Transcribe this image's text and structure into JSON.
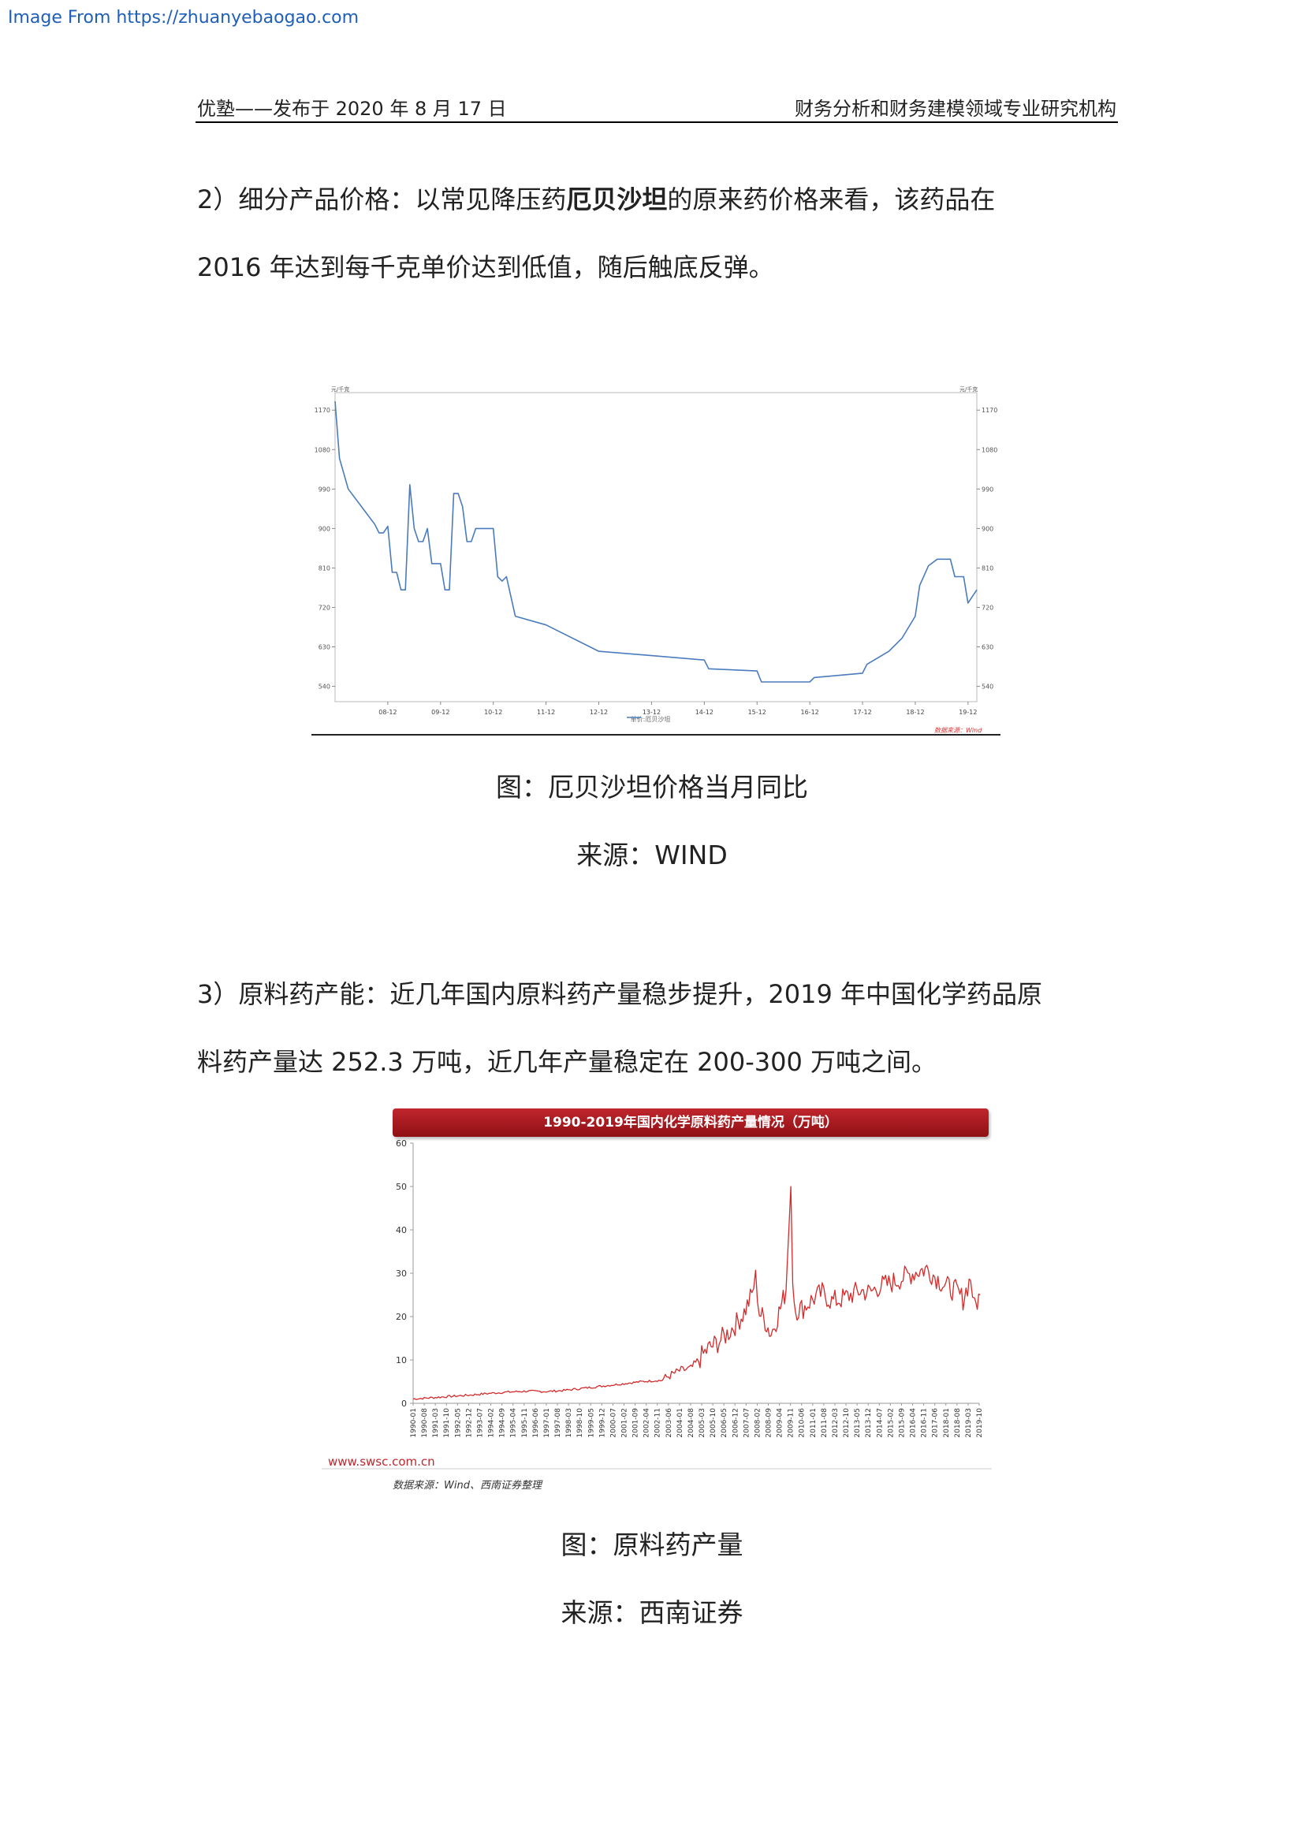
{
  "watermark": "Image From https://zhuanyebaogao.com",
  "header": {
    "left": "优塾——发布于 2020 年 8 月 17 日",
    "right": "财务分析和财务建模领域专业研究机构"
  },
  "section2": {
    "line1_before": "2）细分产品价格：以常见降压药",
    "line1_bold": "厄贝沙坦",
    "line1_after": "的原来药价格来看，该药品在",
    "line2": "2016 年达到每千克单价达到低值，随后触底反弹。"
  },
  "figure1": {
    "caption": "图：厄贝沙坦价格当月同比",
    "source": "来源：WIND"
  },
  "section3": {
    "line1": "3）原料药产能：近几年国内原料药产量稳步提升，2019 年中国化学药品原",
    "line2": "料药产量达 252.3 万吨，近几年产量稳定在 200-300 万吨之间。"
  },
  "figure2": {
    "caption": "图：原料药产量",
    "source": "来源：西南证券"
  },
  "chart_data": [
    {
      "type": "line",
      "unit_left": "元/千克",
      "unit_right": "元/千克",
      "x_ticks": [
        "08-12",
        "09-12",
        "10-12",
        "11-12",
        "12-12",
        "13-12",
        "14-12",
        "15-12",
        "16-12",
        "17-12",
        "18-12",
        "19-12"
      ],
      "y_ticks": [
        540,
        630,
        720,
        810,
        900,
        990,
        1080,
        1170
      ],
      "ylim": [
        505,
        1210
      ],
      "legend": "单价:厄贝沙坦",
      "source_note": "数据来源：Wind",
      "series": [
        {
          "name": "单价:厄贝沙坦",
          "color": "#4a7bbd",
          "points": [
            [
              "2007-12",
              1190
            ],
            [
              "2008-01",
              1060
            ],
            [
              "2008-03",
              990
            ],
            [
              "2008-06",
              950
            ],
            [
              "2008-09",
              910
            ],
            [
              "2008-10",
              890
            ],
            [
              "2008-11",
              890
            ],
            [
              "2008-12",
              905
            ],
            [
              "2009-01",
              800
            ],
            [
              "2009-02",
              800
            ],
            [
              "2009-03",
              760
            ],
            [
              "2009-04",
              760
            ],
            [
              "2009-05",
              1000
            ],
            [
              "2009-06",
              900
            ],
            [
              "2009-07",
              870
            ],
            [
              "2009-08",
              870
            ],
            [
              "2009-09",
              900
            ],
            [
              "2009-10",
              820
            ],
            [
              "2009-11",
              820
            ],
            [
              "2009-12",
              820
            ],
            [
              "2010-01",
              760
            ],
            [
              "2010-02",
              760
            ],
            [
              "2010-03",
              980
            ],
            [
              "2010-04",
              980
            ],
            [
              "2010-05",
              950
            ],
            [
              "2010-06",
              870
            ],
            [
              "2010-07",
              870
            ],
            [
              "2010-08",
              900
            ],
            [
              "2010-09",
              900
            ],
            [
              "2010-10",
              900
            ],
            [
              "2010-11",
              900
            ],
            [
              "2010-12",
              900
            ],
            [
              "2011-01",
              790
            ],
            [
              "2011-02",
              780
            ],
            [
              "2011-03",
              790
            ],
            [
              "2011-05",
              700
            ],
            [
              "2011-12",
              680
            ],
            [
              "2012-12",
              620
            ],
            [
              "2013-12",
              610
            ],
            [
              "2014-12",
              600
            ],
            [
              "2015-01",
              580
            ],
            [
              "2015-12",
              575
            ],
            [
              "2016-01",
              550
            ],
            [
              "2016-12",
              550
            ],
            [
              "2017-01",
              560
            ],
            [
              "2017-12",
              570
            ],
            [
              "2018-01",
              590
            ],
            [
              "2018-06",
              620
            ],
            [
              "2018-09",
              650
            ],
            [
              "2018-12",
              700
            ],
            [
              "2019-01",
              770
            ],
            [
              "2019-03",
              815
            ],
            [
              "2019-05",
              830
            ],
            [
              "2019-08",
              830
            ],
            [
              "2019-09",
              790
            ],
            [
              "2019-11",
              790
            ],
            [
              "2019-12",
              730
            ],
            [
              "2020-02",
              760
            ]
          ]
        }
      ]
    },
    {
      "type": "line",
      "title": "1990-2019年国内化学原料药产量情况（万吨）",
      "y_ticks": [
        0,
        10,
        20,
        30,
        40,
        50,
        60
      ],
      "ylim": [
        0,
        60
      ],
      "x_range": [
        "1990-01",
        "2019-10"
      ],
      "x_ticks": [
        "1990-01",
        "1990-08",
        "1991-03",
        "1991-10",
        "1992-05",
        "1992-12",
        "1993-07",
        "1994-02",
        "1994-09",
        "1995-04",
        "1995-11",
        "1996-06",
        "1997-01",
        "1997-08",
        "1998-03",
        "1998-10",
        "1999-05",
        "1999-12",
        "2000-07",
        "2001-02",
        "2001-09",
        "2002-04",
        "2002-11",
        "2003-06",
        "2004-01",
        "2004-08",
        "2005-03",
        "2005-10",
        "2006-05",
        "2006-12",
        "2007-07",
        "2008-02",
        "2008-09",
        "2009-04",
        "2009-11",
        "2010-06",
        "2011-01",
        "2011-08",
        "2012-03",
        "2012-10",
        "2013-05",
        "2013-12",
        "2014-07",
        "2015-02",
        "2015-09",
        "2016-04",
        "2016-11",
        "2017-06",
        "2018-01",
        "2018-08",
        "2019-03",
        "2019-10"
      ],
      "watermark": "www.swsc.com.cn",
      "source_note": "数据来源：Wind、西南证券整理",
      "series": [
        {
          "name": "",
          "color": "#d42a2a",
          "points": [
            [
              1990.0,
              1.0
            ],
            [
              1991.0,
              1.3
            ],
            [
              1992.0,
              1.6
            ],
            [
              1993.0,
              1.9
            ],
            [
              1994.0,
              2.3
            ],
            [
              1995.0,
              2.6
            ],
            [
              1996.0,
              2.8
            ],
            [
              1997.0,
              2.7
            ],
            [
              1998.0,
              3.0
            ],
            [
              1999.0,
              3.5
            ],
            [
              2000.0,
              4.0
            ],
            [
              2001.0,
              4.5
            ],
            [
              2002.0,
              5.0
            ],
            [
              2003.0,
              5.3
            ],
            [
              2004.0,
              7.5
            ],
            [
              2004.6,
              8.0
            ],
            [
              2005.0,
              10.0
            ],
            [
              2005.5,
              12.5
            ],
            [
              2006.0,
              14.0
            ],
            [
              2006.5,
              16.0
            ],
            [
              2007.0,
              18.5
            ],
            [
              2007.4,
              21.0
            ],
            [
              2007.8,
              25.0
            ],
            [
              2008.0,
              29.0
            ],
            [
              2008.2,
              21.0
            ],
            [
              2008.5,
              19.0
            ],
            [
              2008.8,
              16.0
            ],
            [
              2009.0,
              18.0
            ],
            [
              2009.3,
              22.0
            ],
            [
              2009.6,
              26.0
            ],
            [
              2009.85,
              50.0
            ],
            [
              2009.95,
              28.0
            ],
            [
              2010.1,
              21.5
            ],
            [
              2010.5,
              22.0
            ],
            [
              2011.0,
              24.0
            ],
            [
              2011.5,
              25.5
            ],
            [
              2012.0,
              23.5
            ],
            [
              2012.5,
              24.0
            ],
            [
              2013.0,
              25.0
            ],
            [
              2013.5,
              26.0
            ],
            [
              2014.0,
              25.5
            ],
            [
              2014.5,
              27.0
            ],
            [
              2015.0,
              27.5
            ],
            [
              2015.5,
              28.5
            ],
            [
              2016.0,
              29.5
            ],
            [
              2016.5,
              30.5
            ],
            [
              2017.0,
              31.0
            ],
            [
              2017.5,
              29.0
            ],
            [
              2018.0,
              27.0
            ],
            [
              2018.5,
              26.0
            ],
            [
              2018.9,
              24.0
            ],
            [
              2019.3,
              29.0
            ],
            [
              2019.5,
              22.0
            ],
            [
              2019.8,
              25.0
            ]
          ]
        }
      ]
    }
  ]
}
